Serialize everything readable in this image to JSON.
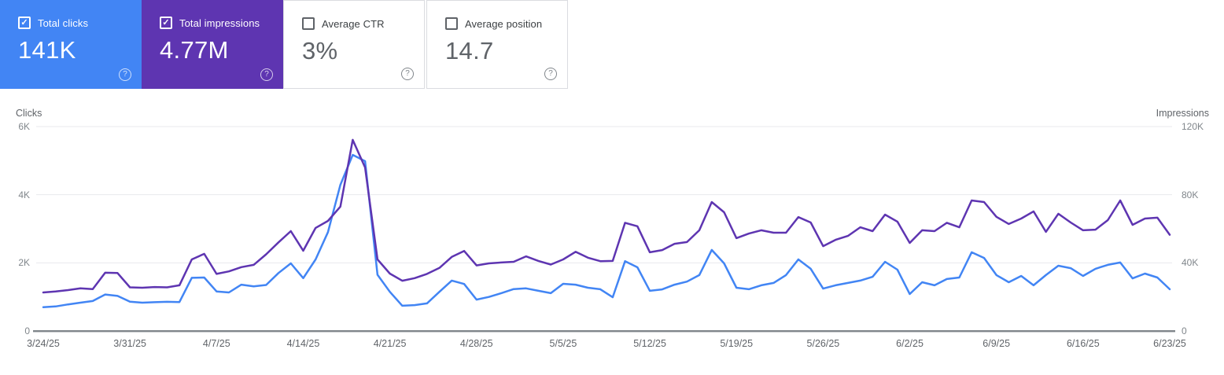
{
  "cards": [
    {
      "label": "Total clicks",
      "value": "141K",
      "selected": true,
      "color": "#4285f4"
    },
    {
      "label": "Total impressions",
      "value": "4.77M",
      "selected": true,
      "color": "#5e35b1"
    },
    {
      "label": "Average CTR",
      "value": "3%",
      "selected": false,
      "color": "#ffffff"
    },
    {
      "label": "Average position",
      "value": "14.7",
      "selected": false,
      "color": "#ffffff"
    }
  ],
  "icons": {
    "help": "?",
    "check": "✓"
  },
  "colors": {
    "clicks": "#4285f4",
    "impressions": "#5e35b1",
    "gridline": "#e8eaed",
    "axis_line": "#80868b",
    "tick_text": "#80868b",
    "date_text": "#5f6368"
  },
  "chart_data": {
    "type": "line",
    "num_days": 92,
    "x_tick_days": [
      0,
      7,
      14,
      21,
      28,
      35,
      42,
      49,
      56,
      63,
      70,
      77,
      84,
      91
    ],
    "x_tick_labels": [
      "3/24/25",
      "3/31/25",
      "4/7/25",
      "4/14/25",
      "4/21/25",
      "4/28/25",
      "5/5/25",
      "5/12/25",
      "5/19/25",
      "5/26/25",
      "6/2/25",
      "6/9/25",
      "6/16/25",
      "6/23/25"
    ],
    "left_axis": {
      "label": "Clicks",
      "max": 6000,
      "tick_values": [
        0,
        2000,
        4000,
        6000
      ],
      "tick_labels": [
        "0",
        "2K",
        "4K",
        "6K"
      ]
    },
    "right_axis": {
      "label": "Impressions",
      "max": 120000,
      "tick_values": [
        0,
        40000,
        80000,
        120000
      ],
      "tick_labels": [
        "0",
        "40K",
        "80K",
        "120K"
      ]
    },
    "grid": true,
    "legend": "none",
    "series": [
      {
        "name": "Clicks",
        "axis": "left",
        "color": "#4285f4",
        "values": [
          700,
          720,
          780,
          830,
          880,
          1070,
          1030,
          860,
          830,
          845,
          855,
          850,
          1560,
          1570,
          1160,
          1130,
          1360,
          1310,
          1350,
          1700,
          1985,
          1550,
          2100,
          2900,
          4290,
          5170,
          4985,
          1650,
          1150,
          740,
          760,
          810,
          1150,
          1480,
          1380,
          920,
          1000,
          1110,
          1230,
          1250,
          1180,
          1110,
          1385,
          1360,
          1270,
          1225,
          990,
          2050,
          1870,
          1180,
          1220,
          1360,
          1450,
          1640,
          2380,
          1985,
          1270,
          1225,
          1340,
          1410,
          1640,
          2100,
          1825,
          1245,
          1340,
          1410,
          1480,
          1590,
          2030,
          1800,
          1085,
          1430,
          1340,
          1525,
          1570,
          2310,
          2145,
          1640,
          1430,
          1615,
          1340,
          1640,
          1915,
          1845,
          1615,
          1825,
          1940,
          2010,
          1545,
          1685,
          1570,
          1225
        ]
      },
      {
        "name": "Impressions",
        "axis": "right",
        "color": "#5e35b1",
        "values": [
          22600,
          23200,
          24000,
          25000,
          24600,
          34200,
          34000,
          25600,
          25400,
          25800,
          25600,
          26800,
          42000,
          45300,
          33500,
          35000,
          37500,
          38800,
          45000,
          52000,
          58600,
          47100,
          60500,
          64600,
          73000,
          112200,
          96000,
          42000,
          33700,
          29500,
          31000,
          33500,
          37000,
          43500,
          47000,
          38500,
          39700,
          40200,
          40600,
          43800,
          41100,
          39000,
          42000,
          46500,
          43000,
          41000,
          41100,
          63500,
          61500,
          46200,
          47500,
          51200,
          52200,
          59100,
          75700,
          69700,
          54500,
          57200,
          59100,
          57700,
          57700,
          66900,
          63700,
          49800,
          53500,
          55800,
          60900,
          58600,
          68300,
          64200,
          51700,
          59100,
          58600,
          63500,
          60900,
          76600,
          75700,
          67000,
          62800,
          66000,
          70200,
          58200,
          68800,
          63700,
          59100,
          59500,
          65100,
          76600,
          62300,
          66000,
          66500,
          56500
        ]
      }
    ]
  }
}
